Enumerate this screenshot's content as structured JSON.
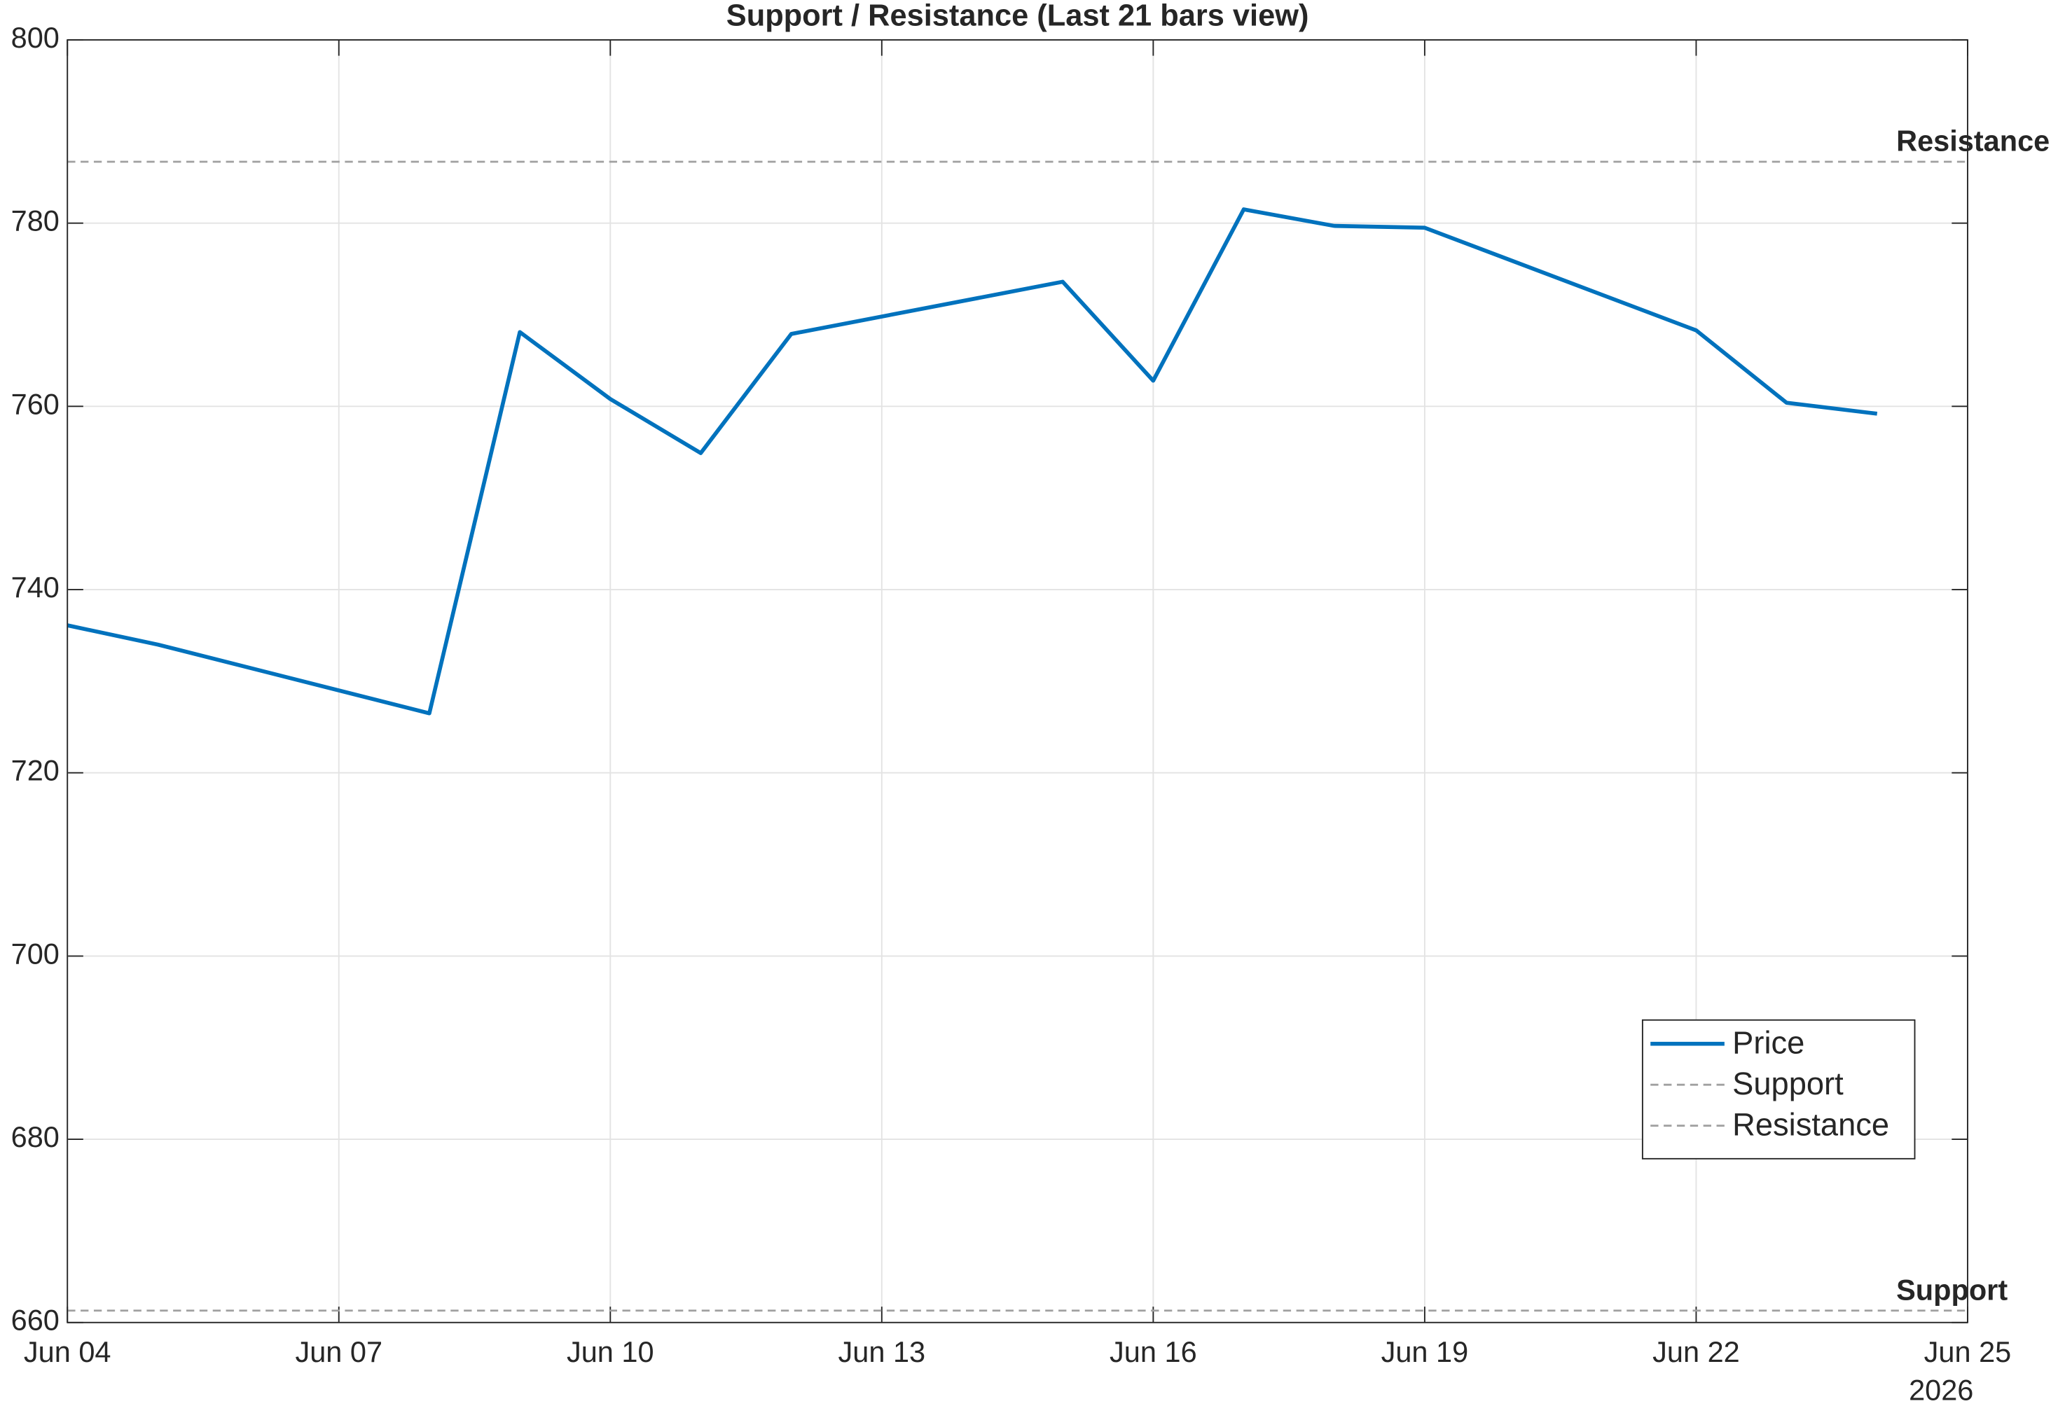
{
  "chart_data": {
    "type": "line",
    "title": "Support / Resistance (Last 21 bars view)",
    "x": [
      "2026-06-04",
      "2026-06-05",
      "2026-06-08",
      "2026-06-09",
      "2026-06-10",
      "2026-06-11",
      "2026-06-12",
      "2026-06-15",
      "2026-06-16",
      "2026-06-17",
      "2026-06-18",
      "2026-06-19",
      "2026-06-22",
      "2026-06-23",
      "2026-06-24"
    ],
    "series": [
      {
        "name": "Price",
        "color": "#0072bd",
        "values": [
          736.1,
          734.0,
          726.5,
          768.1,
          760.8,
          754.9,
          767.9,
          773.6,
          762.8,
          781.5,
          779.7,
          779.5,
          768.3,
          760.4,
          759.2
        ]
      }
    ],
    "hlines": [
      {
        "name": "Support",
        "value": 661.3,
        "color": "#a0a0a0",
        "dash": true
      },
      {
        "name": "Resistance",
        "value": 786.7,
        "color": "#a0a0a0",
        "dash": true
      }
    ],
    "xlim": [
      "2026-06-04",
      "2026-06-25"
    ],
    "xticks": [
      {
        "value": "2026-06-04",
        "label": "Jun 04"
      },
      {
        "value": "2026-06-07",
        "label": "Jun 07"
      },
      {
        "value": "2026-06-10",
        "label": "Jun 10"
      },
      {
        "value": "2026-06-13",
        "label": "Jun 13"
      },
      {
        "value": "2026-06-16",
        "label": "Jun 16"
      },
      {
        "value": "2026-06-19",
        "label": "Jun 19"
      },
      {
        "value": "2026-06-22",
        "label": "Jun 22"
      },
      {
        "value": "2026-06-25",
        "label": "Jun 25"
      }
    ],
    "x_year_label": "2026",
    "ylim": [
      660,
      800
    ],
    "yticks": [
      660,
      680,
      700,
      720,
      740,
      760,
      780,
      800
    ],
    "grid": true,
    "legend": "lower right"
  }
}
